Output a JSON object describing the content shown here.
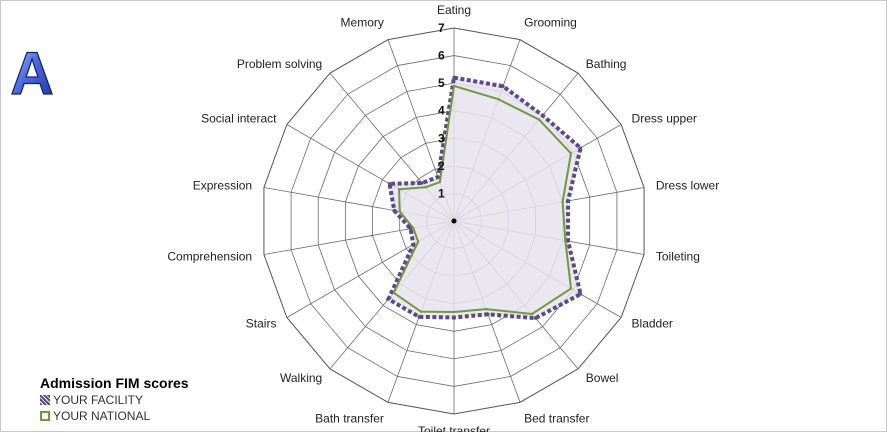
{
  "panel_label": "A",
  "chart_data": {
    "type": "radar",
    "title": "",
    "categories": [
      "Eating",
      "Grooming",
      "Bathing",
      "Dress upper",
      "Dress lower",
      "Toileting",
      "Bladder",
      "Bowel",
      "Bed transfer",
      "Toilet transfer",
      "Bath transfer",
      "Walking",
      "Stairs",
      "Comprehension",
      "Expression",
      "Social interact",
      "Problem solving",
      "Memory"
    ],
    "radial_ticks": [
      "1",
      "2",
      "3",
      "4",
      "5",
      "6",
      "7"
    ],
    "rlim": [
      0,
      7
    ],
    "grid": true,
    "legend_title": "Admission FIM scores",
    "legend_position": "bottom-left",
    "series": [
      {
        "name": "YOUR FACILITY",
        "style": "dashed",
        "color": "#5a4a8a",
        "values": [
          5.2,
          5.2,
          5.0,
          5.3,
          4.2,
          4.2,
          5.3,
          4.6,
          3.6,
          3.5,
          3.7,
          3.7,
          1.7,
          1.6,
          2.2,
          2.7,
          1.8,
          1.7
        ]
      },
      {
        "name": "YOUR NATIONAL",
        "style": "solid",
        "color": "#6f9a3a",
        "values": [
          4.9,
          4.7,
          4.8,
          4.9,
          4.0,
          4.1,
          4.9,
          4.4,
          3.4,
          3.3,
          3.5,
          3.4,
          1.5,
          1.5,
          2.0,
          2.3,
          1.6,
          1.5
        ]
      }
    ]
  }
}
